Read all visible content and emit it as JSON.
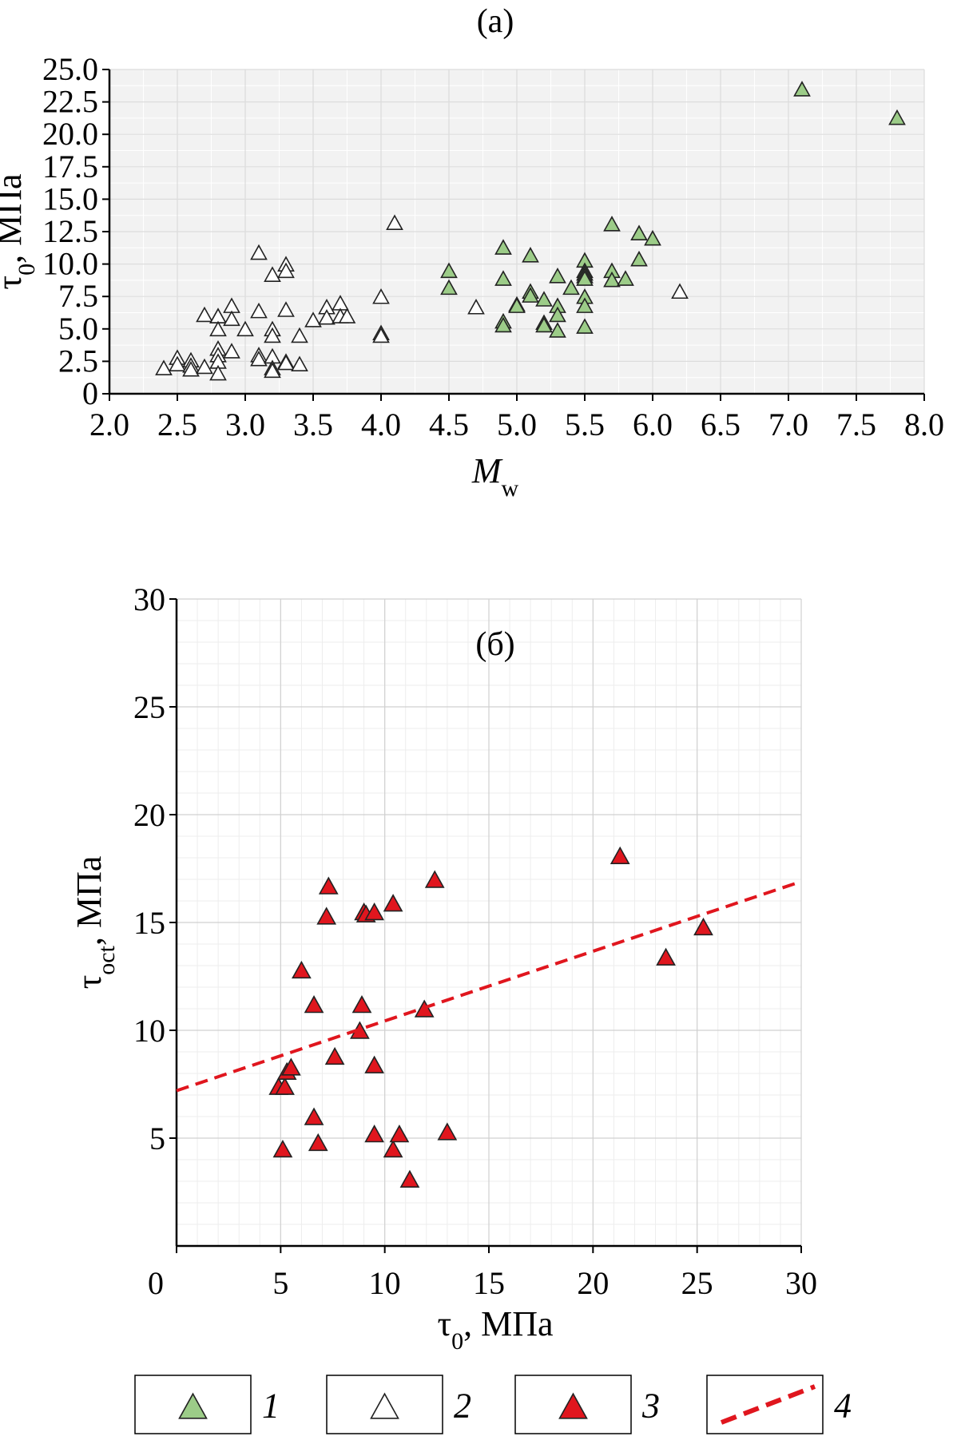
{
  "panels": [
    {
      "label": "(a)",
      "xlabel": "M",
      "xlabel_sub": "w",
      "ylabel": "τ",
      "ylabel_sub": "0",
      "ylabel_unit": ", МПа"
    },
    {
      "label": "(б)",
      "xlabel": "τ",
      "xlabel_sub": "0",
      "xlabel_unit": ", МПа",
      "ylabel": "τ",
      "ylabel_sub": "oct",
      "ylabel_unit": ", МПа"
    }
  ],
  "legend": [
    {
      "number": "1",
      "symbol": "triangle",
      "fill": "#9ccc88"
    },
    {
      "number": "2",
      "symbol": "triangle",
      "fill": "#ffffff"
    },
    {
      "number": "3",
      "symbol": "triangle",
      "fill": "#e0161e"
    },
    {
      "number": "4",
      "symbol": "dashed-line",
      "fill": "#e0161e"
    }
  ],
  "chart_data": [
    {
      "type": "scatter",
      "xlim": [
        2.0,
        8.0
      ],
      "ylim": [
        0,
        25.0
      ],
      "xticks": [
        "2.0",
        "2.5",
        "3.0",
        "3.5",
        "4.0",
        "4.5",
        "5.0",
        "5.5",
        "6.0",
        "6.5",
        "7.0",
        "7.5",
        "8.0"
      ],
      "yticks": [
        "0",
        "2.5",
        "5.0",
        "7.5",
        "10.0",
        "12.5",
        "15.0",
        "17.5",
        "20.0",
        "22.5",
        "25.0"
      ],
      "grid": true,
      "series": [
        {
          "legend_number": "1",
          "color": "#9ccc88",
          "x": [
            4.5,
            4.5,
            4.9,
            4.9,
            4.9,
            4.9,
            5.0,
            5.0,
            5.1,
            5.1,
            5.1,
            5.2,
            5.2,
            5.2,
            5.3,
            5.3,
            5.3,
            5.3,
            5.4,
            5.5,
            5.5,
            5.5,
            5.5,
            5.5,
            5.5,
            5.5,
            5.5,
            5.7,
            5.7,
            5.7,
            5.8,
            5.9,
            5.9,
            6.0,
            7.1,
            7.8
          ],
          "y": [
            9.5,
            8.2,
            11.3,
            8.9,
            5.6,
            5.3,
            6.9,
            6.8,
            10.7,
            7.9,
            7.6,
            7.3,
            5.5,
            5.3,
            9.1,
            6.8,
            6.1,
            4.9,
            8.2,
            10.3,
            9.5,
            9.3,
            9.1,
            8.9,
            7.5,
            6.8,
            5.2,
            13.1,
            9.5,
            8.8,
            8.9,
            12.4,
            10.4,
            12.0,
            23.5,
            21.3
          ]
        },
        {
          "legend_number": "2",
          "color": "#ffffff",
          "x": [
            2.4,
            2.5,
            2.5,
            2.6,
            2.6,
            2.6,
            2.7,
            2.7,
            2.8,
            2.8,
            2.8,
            2.8,
            2.8,
            2.8,
            2.8,
            2.9,
            2.9,
            2.9,
            3.0,
            3.1,
            3.1,
            3.1,
            3.1,
            3.2,
            3.2,
            3.2,
            3.2,
            3.2,
            3.2,
            3.3,
            3.3,
            3.3,
            3.3,
            3.3,
            3.4,
            3.4,
            3.5,
            3.6,
            3.6,
            3.7,
            3.7,
            3.75,
            4.0,
            4.0,
            4.0,
            4.1,
            4.7,
            6.2
          ],
          "y": [
            2.0,
            2.8,
            2.3,
            2.6,
            2.2,
            1.9,
            6.1,
            2.1,
            6.0,
            6.0,
            5.0,
            3.5,
            3.0,
            2.5,
            1.6,
            6.8,
            5.8,
            3.3,
            5.0,
            10.9,
            6.4,
            3.0,
            2.7,
            9.2,
            5.0,
            4.5,
            2.9,
            2.0,
            1.8,
            10.0,
            9.5,
            6.5,
            2.5,
            2.4,
            4.5,
            2.3,
            5.7,
            6.7,
            5.9,
            7.0,
            6.0,
            6.0,
            7.5,
            4.7,
            4.5,
            13.2,
            6.7,
            7.9
          ]
        }
      ]
    },
    {
      "type": "scatter",
      "xlim": [
        0,
        30
      ],
      "ylim": [
        0,
        30
      ],
      "xticks": [
        "0",
        "5",
        "10",
        "15",
        "20",
        "25",
        "30"
      ],
      "yticks": [
        "5",
        "10",
        "15",
        "20",
        "25",
        "30"
      ],
      "grid": true,
      "series": [
        {
          "legend_number": "3",
          "color": "#e0161e",
          "x": [
            4.9,
            5.1,
            5.2,
            5.3,
            5.5,
            6.0,
            6.6,
            6.6,
            6.8,
            7.2,
            7.3,
            7.6,
            8.8,
            8.9,
            9.0,
            9.1,
            9.5,
            9.5,
            9.5,
            10.4,
            10.4,
            10.7,
            11.2,
            11.9,
            12.4,
            13.0,
            21.3,
            23.5,
            25.3
          ],
          "y": [
            7.4,
            4.5,
            7.4,
            8.1,
            8.3,
            12.8,
            11.2,
            6.0,
            4.8,
            15.3,
            16.7,
            8.8,
            10.0,
            11.2,
            15.5,
            15.4,
            15.5,
            8.4,
            5.2,
            15.9,
            4.5,
            5.2,
            3.1,
            11.0,
            17.0,
            5.3,
            18.1,
            13.4,
            14.8
          ]
        },
        {
          "legend_number": "4",
          "type": "line",
          "style": "dashed",
          "color": "#e0161e",
          "x": [
            0,
            30
          ],
          "y": [
            7.2,
            16.9
          ]
        }
      ]
    }
  ]
}
